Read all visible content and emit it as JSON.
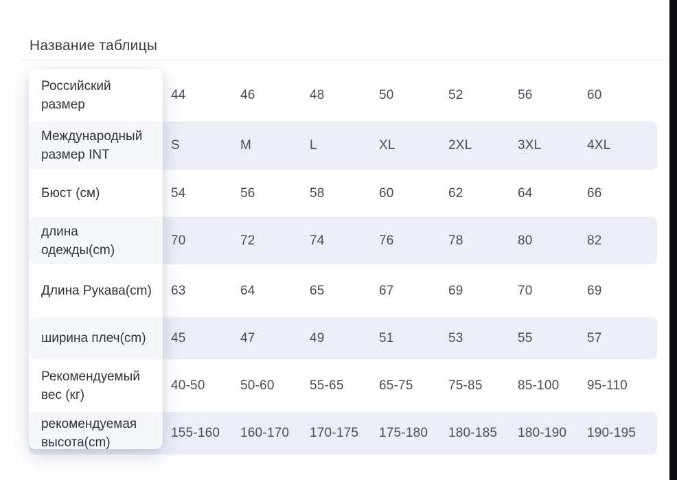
{
  "title": "Название таблицы",
  "colors": {
    "row_tint": "#ebeef7",
    "edge_bar": "#0d0d0f",
    "label_text": "#2f3338",
    "value_text": "#494d54"
  },
  "table": {
    "rows": [
      {
        "label": "Российский размер",
        "label_lines": [
          "Российский",
          "размер"
        ],
        "values": [
          "44",
          "46",
          "48",
          "50",
          "52",
          "56",
          "60"
        ]
      },
      {
        "label": "Международный размер INT",
        "label_lines": [
          "Международный",
          "размер INT"
        ],
        "values": [
          "S",
          "M",
          "L",
          "XL",
          "2XL",
          "3XL",
          "4XL"
        ]
      },
      {
        "label": "Бюст (см)",
        "label_lines": [
          "Бюст (см)"
        ],
        "values": [
          "54",
          "56",
          "58",
          "60",
          "62",
          "64",
          "66"
        ]
      },
      {
        "label": "длина одежды(cm)",
        "label_lines": [
          "длина",
          "одежды(cm)"
        ],
        "values": [
          "70",
          "72",
          "74",
          "76",
          "78",
          "80",
          "82"
        ]
      },
      {
        "label": "Длина Рукава(cm)",
        "label_lines": [
          "Длина Рукава(cm)"
        ],
        "values": [
          "63",
          "64",
          "65",
          "67",
          "69",
          "70",
          "69"
        ]
      },
      {
        "label": "ширина плеч(cm)",
        "label_lines": [
          "ширина плеч(cm)"
        ],
        "values": [
          "45",
          "47",
          "49",
          "51",
          "53",
          "55",
          "57"
        ]
      },
      {
        "label": "Рекомендуемый вес (кг)",
        "label_lines": [
          "Рекомендуемый",
          "вес (кг)"
        ],
        "values": [
          "40-50",
          "50-60",
          "55-65",
          "65-75",
          "75-85",
          "85-100",
          "95-110"
        ]
      },
      {
        "label": "рекомендуемая высота(cm)",
        "label_lines": [
          "рекомендуемая",
          "высота(cm)"
        ],
        "values": [
          "155-160",
          "160-170",
          "170-175",
          "175-180",
          "180-185",
          "180-190",
          "190-195"
        ]
      }
    ]
  }
}
